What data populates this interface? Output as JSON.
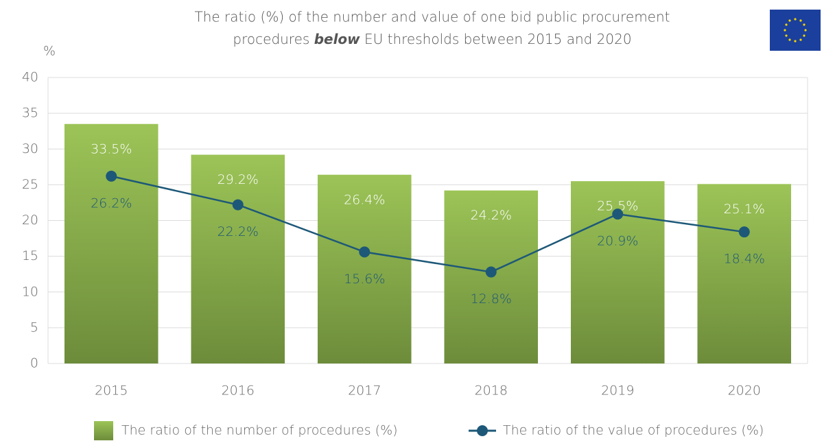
{
  "chart_data": {
    "type": "combo",
    "title": [
      "The ratio (%) of the number and value of one bid public procurement",
      "procedures ",
      "below",
      " EU thresholds between 2015 and 2020"
    ],
    "y_label": "%",
    "categories": [
      "2015",
      "2016",
      "2017",
      "2018",
      "2019",
      "2020"
    ],
    "series": [
      {
        "name": "The ratio of the number of procedures (%)",
        "type": "bar",
        "color": "#8db04a",
        "values": [
          33.5,
          29.2,
          26.4,
          24.2,
          25.5,
          25.1
        ],
        "value_labels": [
          "33.5%",
          "29.2%",
          "26.4%",
          "24.2%",
          "25.5%",
          "25.1%"
        ]
      },
      {
        "name": "The ratio of the value of procedures (%)",
        "type": "line",
        "color": "#1d5878",
        "values": [
          26.2,
          22.2,
          15.6,
          12.8,
          20.9,
          18.4
        ],
        "value_labels": [
          "26.2%",
          "22.2%",
          "15.6%",
          "12.8%",
          "20.9%",
          "18.4%"
        ]
      }
    ],
    "ylim": [
      0,
      40
    ],
    "yticks": [
      0,
      5,
      10,
      15,
      20,
      25,
      30,
      35,
      40
    ],
    "grid": true,
    "legend": "bottom"
  }
}
